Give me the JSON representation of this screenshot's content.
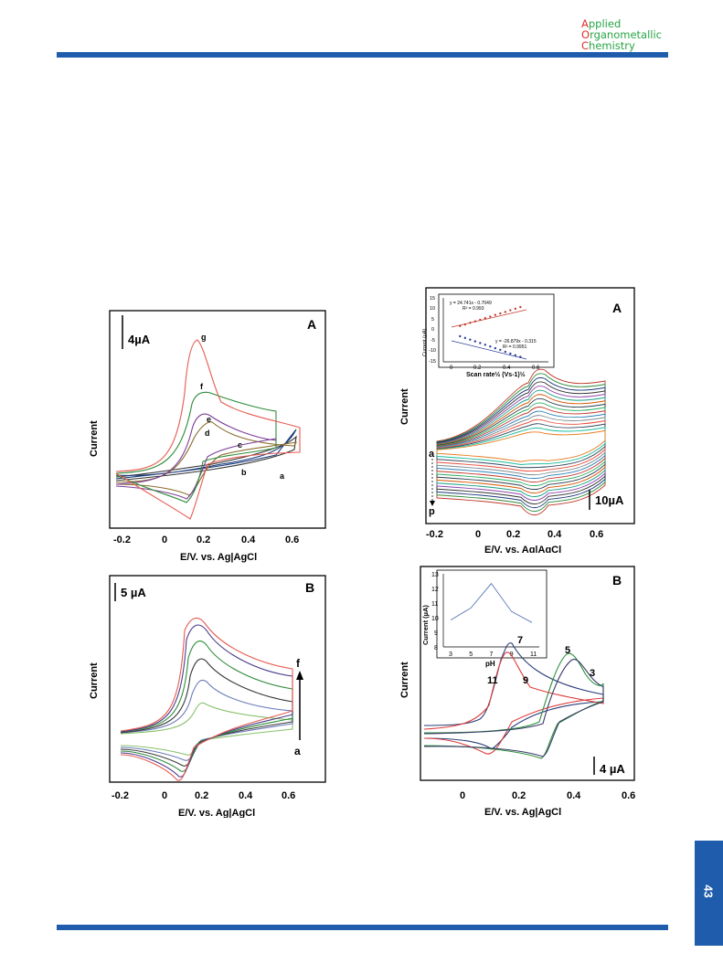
{
  "journal": {
    "line1_initial": "A",
    "line1_rest": "pplied",
    "line2_initial": "O",
    "line2_rest": "rganometallic",
    "line3_initial": "C",
    "line3_rest": "hemistry"
  },
  "page_number": "43",
  "colors": {
    "accent_blue": "#1f5cab",
    "journal_green": "#27a544",
    "journal_red": "#e0302a"
  },
  "figures": {
    "left_A": {
      "panel": "A",
      "scale": "4µA",
      "ylabel": "Current",
      "xlabel": "E/V. vs. Ag|AgCl",
      "ticks": [
        "-0.2",
        "0",
        "0.2",
        "0.4",
        "0.6"
      ],
      "labels": [
        "g",
        "f",
        "e",
        "d",
        "c",
        "b",
        "a"
      ]
    },
    "left_B": {
      "panel": "B",
      "scale": "5 µA",
      "ylabel": "Current",
      "xlabel": "E/V. vs. Ag|AgCl",
      "ticks": [
        "-0.2",
        "0",
        "0.2",
        "0.4",
        "0.6"
      ],
      "arrow_top": "f",
      "arrow_bottom": "a"
    },
    "right_A": {
      "panel": "A",
      "scale": "10µA",
      "ylabel": "Current",
      "xlabel": "E/V. vs. Ag|AgCl",
      "ticks": [
        "-0.2",
        "0",
        "0.2",
        "0.4",
        "0.6"
      ],
      "arrow_top": "a",
      "arrow_bottom": "p",
      "inset": {
        "ylabel": "Current (µA)",
        "xlabel": "Scan rate½ (Vs-1)½",
        "eq1": "y = 24.741x - 0.7049",
        "r1": "R² = 0.993",
        "eq2": "y = -26.879x - 0.315",
        "r2": "R² = 0.9951",
        "yticks": [
          "15",
          "10",
          "5",
          "0",
          "-5",
          "-10",
          "-15"
        ],
        "xticks": [
          "0",
          "0.2",
          "0.4",
          "0.6"
        ]
      }
    },
    "right_B": {
      "panel": "B",
      "scale": "4 µA",
      "ylabel": "Current",
      "xlabel": "E/V. vs. Ag|AgCl",
      "ticks": [
        "0",
        "0.2",
        "0.4",
        "0.6"
      ],
      "labels": [
        "7",
        "5",
        "3",
        "11",
        "9"
      ],
      "inset": {
        "ylabel": "Current (µA)",
        "xlabel": "pH",
        "yticks": [
          "13",
          "12",
          "11",
          "10",
          "9",
          "8"
        ],
        "xticks": [
          "3",
          "5",
          "7",
          "9",
          "11"
        ]
      }
    }
  },
  "chart_data": [
    {
      "type": "line",
      "title": "",
      "xlabel": "pH",
      "ylabel": "Current (µA)",
      "x": [
        3,
        5,
        7,
        9,
        11
      ],
      "values": [
        10.2,
        11.2,
        13.2,
        10.9,
        10.0
      ],
      "ylim": [
        8,
        14
      ]
    },
    {
      "type": "scatter",
      "title": "",
      "xlabel": "Scan rate½ (Vs-1)½",
      "ylabel": "Current (µA)",
      "ylim": [
        -15,
        15
      ],
      "xlim": [
        0,
        0.6
      ],
      "series": [
        {
          "x": [
            0.1,
            0.13,
            0.16,
            0.19,
            0.22,
            0.25,
            0.28,
            0.31,
            0.34,
            0.37,
            0.4,
            0.43,
            0.46
          ],
          "values": [
            1.8,
            2.5,
            3.3,
            4.0,
            4.7,
            5.5,
            6.2,
            7.0,
            7.7,
            8.4,
            9.2,
            9.9,
            10.7
          ]
        },
        {
          "x": [
            0.1,
            0.13,
            0.16,
            0.19,
            0.22,
            0.25,
            0.28,
            0.31,
            0.34,
            0.37,
            0.4,
            0.43,
            0.46
          ],
          "values": [
            -3.0,
            -3.8,
            -4.6,
            -5.4,
            -6.2,
            -7.0,
            -7.8,
            -8.6,
            -9.4,
            -10.3,
            -11.1,
            -11.9,
            -12.7
          ]
        }
      ]
    }
  ]
}
